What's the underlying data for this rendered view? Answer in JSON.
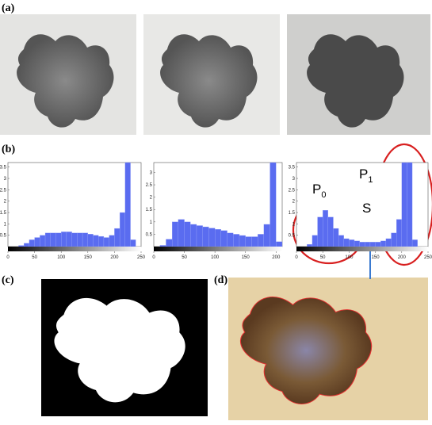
{
  "labels": {
    "a": "(a)",
    "b": "(b)",
    "c": "(c)",
    "d": "(d)"
  },
  "chart_data": [
    {
      "type": "histogram",
      "color": "#5a6cf0",
      "bins": [
        0,
        10,
        20,
        30,
        40,
        50,
        60,
        70,
        80,
        90,
        100,
        110,
        120,
        130,
        140,
        150,
        160,
        170,
        180,
        190,
        200,
        210,
        220,
        230,
        240,
        250
      ],
      "values": [
        0,
        0,
        0.05,
        0.15,
        0.3,
        0.4,
        0.5,
        0.6,
        0.6,
        0.6,
        0.65,
        0.65,
        0.6,
        0.6,
        0.6,
        0.55,
        0.5,
        0.45,
        0.4,
        0.5,
        0.8,
        1.5,
        3.7,
        0.3,
        0
      ],
      "xlim": [
        0,
        250
      ],
      "xticks": [
        0,
        50,
        100,
        150,
        200,
        250
      ],
      "ylim": [
        0,
        3.7
      ],
      "yticks": [
        0.5,
        1,
        1.5,
        2,
        2.5,
        3,
        3.5
      ]
    },
    {
      "type": "histogram",
      "color": "#5a6cf0",
      "bins": [
        0,
        10,
        20,
        30,
        40,
        50,
        60,
        70,
        80,
        90,
        100,
        110,
        120,
        130,
        140,
        150,
        160,
        170,
        180,
        190,
        200,
        210
      ],
      "values": [
        0,
        0.05,
        0.3,
        1.0,
        1.1,
        1.0,
        0.9,
        0.85,
        0.8,
        0.75,
        0.7,
        0.65,
        0.55,
        0.5,
        0.45,
        0.4,
        0.4,
        0.5,
        0.9,
        3.4,
        0.2
      ],
      "xlim": [
        0,
        210
      ],
      "xticks": [
        0,
        50,
        100,
        150,
        200
      ],
      "ylim": [
        0,
        3.4
      ],
      "yticks": [
        0.5,
        1,
        1.5,
        2,
        2.5,
        3
      ]
    },
    {
      "type": "histogram",
      "color": "#5a6cf0",
      "bins": [
        0,
        10,
        20,
        30,
        40,
        50,
        60,
        70,
        80,
        90,
        100,
        110,
        120,
        130,
        140,
        150,
        160,
        170,
        180,
        190,
        200,
        210,
        220,
        230,
        240,
        250
      ],
      "values": [
        0,
        0,
        0.1,
        0.5,
        1.3,
        1.6,
        1.3,
        0.8,
        0.5,
        0.35,
        0.3,
        0.25,
        0.2,
        0.2,
        0.2,
        0.2,
        0.25,
        0.35,
        0.6,
        1.2,
        3.7,
        3.7,
        0.3,
        0,
        0
      ],
      "xlim": [
        0,
        250
      ],
      "xticks": [
        0,
        50,
        100,
        150,
        200,
        250
      ],
      "ylim": [
        0,
        3.7
      ],
      "yticks": [
        0.5,
        1,
        1.5,
        2,
        2.5,
        3,
        3.5
      ]
    }
  ],
  "annotations": [
    {
      "text": "P",
      "sub": "0"
    },
    {
      "text": "P",
      "sub": "1"
    },
    {
      "text": "S"
    }
  ]
}
